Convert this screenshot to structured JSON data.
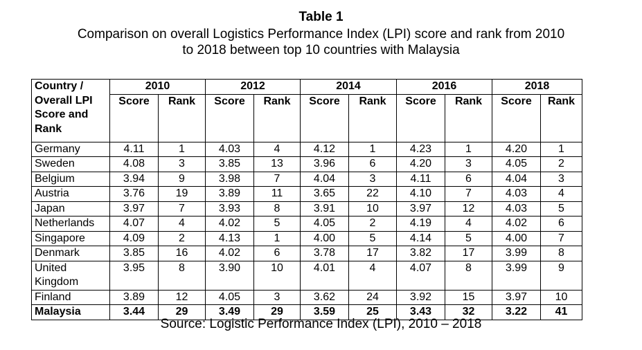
{
  "title": "Table 1",
  "subtitle_line1": "Comparison on overall Logistics Performance Index (LPI) score and rank from 2010",
  "subtitle_line2": "to 2018 between top 10 countries with Malaysia",
  "header": {
    "country_label": "Country / Overall LPI Score and Rank",
    "years": [
      "2010",
      "2012",
      "2014",
      "2016",
      "2018"
    ],
    "score_label": "Score",
    "rank_label": "Rank"
  },
  "rows": [
    {
      "country": "Germany",
      "v": [
        "4.11",
        "1",
        "4.03",
        "4",
        "4.12",
        "1",
        "4.23",
        "1",
        "4.20",
        "1"
      ]
    },
    {
      "country": "Sweden",
      "v": [
        "4.08",
        "3",
        "3.85",
        "13",
        "3.96",
        "6",
        "4.20",
        "3",
        "4.05",
        "2"
      ]
    },
    {
      "country": "Belgium",
      "v": [
        "3.94",
        "9",
        "3.98",
        "7",
        "4.04",
        "3",
        "4.11",
        "6",
        "4.04",
        "3"
      ]
    },
    {
      "country": "Austria",
      "v": [
        "3.76",
        "19",
        "3.89",
        "11",
        "3.65",
        "22",
        "4.10",
        "7",
        "4.03",
        "4"
      ]
    },
    {
      "country": "Japan",
      "v": [
        "3.97",
        "7",
        "3.93",
        "8",
        "3.91",
        "10",
        "3.97",
        "12",
        "4.03",
        "5"
      ]
    },
    {
      "country": "Netherlands",
      "v": [
        "4.07",
        "4",
        "4.02",
        "5",
        "4.05",
        "2",
        "4.19",
        "4",
        "4.02",
        "6"
      ]
    },
    {
      "country": "Singapore",
      "v": [
        "4.09",
        "2",
        "4.13",
        "1",
        "4.00",
        "5",
        "4.14",
        "5",
        "4.00",
        "7"
      ]
    },
    {
      "country": "Denmark",
      "v": [
        "3.85",
        "16",
        "4.02",
        "6",
        "3.78",
        "17",
        "3.82",
        "17",
        "3.99",
        "8"
      ]
    },
    {
      "country": "United Kingdom",
      "v": [
        "3.95",
        "8",
        "3.90",
        "10",
        "4.01",
        "4",
        "4.07",
        "8",
        "3.99",
        "9"
      ]
    },
    {
      "country": "Finland",
      "v": [
        "3.89",
        "12",
        "4.05",
        "3",
        "3.62",
        "24",
        "3.92",
        "15",
        "3.97",
        "10"
      ]
    },
    {
      "country": "Malaysia",
      "v": [
        "3.44",
        "29",
        "3.49",
        "29",
        "3.59",
        "25",
        "3.43",
        "32",
        "3.22",
        "41"
      ]
    }
  ],
  "source": "Source: Logistic Performance Index (LPI), 2010 – 2018"
}
